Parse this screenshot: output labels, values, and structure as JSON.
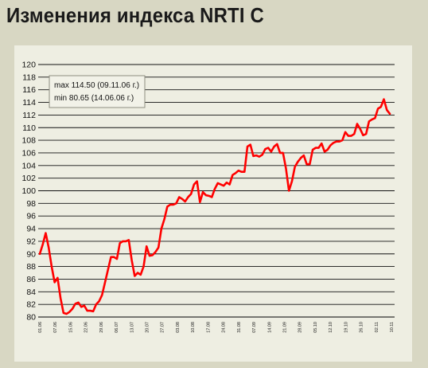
{
  "title": "Изменения индекса NRTI C",
  "colors": {
    "background": "#d8d7c3",
    "panel": "#eeeee2",
    "line": "#ff0000",
    "grid": "#000000"
  },
  "chart_data": {
    "type": "line",
    "title": "",
    "xlabel": "",
    "ylabel": "",
    "ylim": [
      80,
      120
    ],
    "yticks": [
      80,
      82,
      84,
      86,
      88,
      90,
      92,
      94,
      96,
      98,
      100,
      102,
      104,
      106,
      108,
      110,
      112,
      114,
      116,
      118,
      120
    ],
    "xtick_labels": [
      "01.06",
      "07.06",
      "15.06",
      "22.06",
      "29.06",
      "06.07",
      "13.07",
      "20.07",
      "27.07",
      "03.08",
      "10.08",
      "17.08",
      "24.08",
      "31.08",
      "07.09",
      "14.09",
      "21.09",
      "28.09",
      "05.10",
      "12.10",
      "19.10",
      "26.10",
      "02.11",
      "10.11"
    ],
    "grid": "horizontal",
    "legend": {
      "max": "max 114.50 (09.11.06 г.)",
      "min": "min 80.65 (14.06.06 г.)"
    },
    "series": [
      {
        "values": [
          90,
          91.5,
          93.3,
          91,
          88,
          85.5,
          86.2,
          83,
          80.65,
          80.5,
          80.8,
          81.3,
          82.1,
          82.3,
          81.6,
          81.8,
          81,
          81,
          80.9,
          82,
          82.5,
          83.5,
          85.5,
          87.5,
          89.5,
          89.5,
          89.2,
          91.7,
          92,
          92,
          92.2,
          89,
          86.5,
          87,
          86.7,
          88,
          91.2,
          89.7,
          89.8,
          90.3,
          91,
          94,
          95.5,
          97.5,
          97.8,
          97.8,
          98,
          99,
          98.7,
          98.3,
          99,
          99.5,
          101,
          101.5,
          98.2,
          99.8,
          99.3,
          99.2,
          99,
          100.3,
          101.2,
          101,
          100.8,
          101.3,
          101,
          102.5,
          102.8,
          103.2,
          103,
          103,
          107,
          107.3,
          105.5,
          105.6,
          105.4,
          105.7,
          106.6,
          106.8,
          106.2,
          107,
          107.4,
          106,
          106,
          103.5,
          100,
          101.5,
          103.8,
          104.6,
          105.2,
          105.6,
          104.2,
          104.2,
          106.5,
          106.8,
          106.8,
          107.5,
          106.2,
          106.5,
          107.2,
          107.6,
          107.8,
          107.8,
          108,
          109.3,
          108.7,
          108.7,
          109,
          110.6,
          109.8,
          108.8,
          109,
          111,
          111.3,
          111.5,
          113,
          113.3,
          114.5,
          112.8,
          112.2
        ]
      }
    ]
  }
}
